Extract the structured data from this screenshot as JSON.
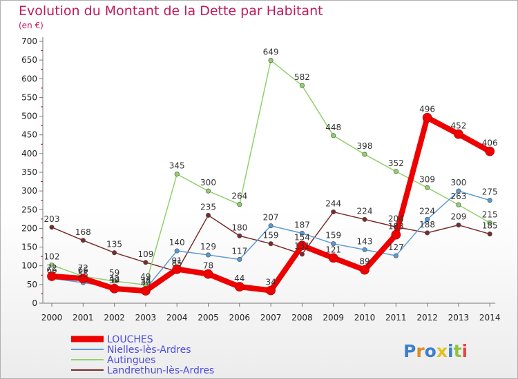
{
  "chart_data": {
    "type": "line",
    "title": "Evolution du Montant de la Dette par Habitant",
    "subtitle": "(en €)",
    "xlabel": "",
    "ylabel": "",
    "x": [
      "2000",
      "2001",
      "2002",
      "2003",
      "2004",
      "2005",
      "2006",
      "2007",
      "2008",
      "2009",
      "2010",
      "2011",
      "2012",
      "2013",
      "2014"
    ],
    "yticks": [
      0,
      50,
      100,
      150,
      200,
      250,
      300,
      350,
      400,
      450,
      500,
      550,
      600,
      650,
      700
    ],
    "ylim": [
      0,
      700
    ],
    "grid": false,
    "legend_position": "bottom-left",
    "series": [
      {
        "name": "LOUCHES",
        "color": "#ee0000",
        "values": [
          72,
          66,
          39,
          33,
          91,
          78,
          44,
          34,
          154,
          121,
          89,
          183,
          496,
          452,
          406
        ]
      },
      {
        "name": "Nielles-lès-Ardres",
        "color": "#5b9bd5",
        "values": [
          66,
          55,
          42,
          38,
          140,
          129,
          117,
          207,
          187,
          159,
          143,
          127,
          224,
          300,
          275
        ]
      },
      {
        "name": "Autingues",
        "color": "#8fd16a",
        "values": [
          102,
          72,
          59,
          49,
          345,
          300,
          264,
          649,
          582,
          448,
          398,
          352,
          309,
          263,
          215
        ]
      },
      {
        "name": "Landrethun-lès-Ardres",
        "color": "#7a2a2a",
        "values": [
          203,
          168,
          135,
          109,
          85,
          235,
          180,
          159,
          131,
          244,
          224,
          204,
          188,
          209,
          185
        ]
      }
    ]
  },
  "watermark": {
    "text": "Proxiti"
  }
}
